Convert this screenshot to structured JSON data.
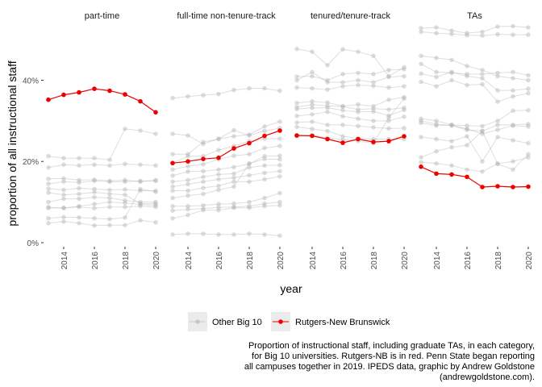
{
  "chart_data": {
    "type": "line",
    "facets": [
      "part-time",
      "full-time non-tenure-track",
      "tenured/tenure-track",
      "TAs"
    ],
    "xlabel": "year",
    "ylabel": "proportion of all instructional staff",
    "x_ticks": [
      "2014",
      "2016",
      "2018",
      "2020"
    ],
    "y_ticks": [
      "0%",
      "20%",
      "40%"
    ],
    "x": [
      2013,
      2014,
      2015,
      2016,
      2017,
      2018,
      2019,
      2020
    ],
    "xlim": [
      2013,
      2020
    ],
    "ylim": [
      0,
      0.53
    ],
    "legend": {
      "position": "bottom",
      "items": [
        {
          "label": "Other Big 10",
          "color": "#b5b5b5"
        },
        {
          "label": "Rutgers-New Brunswick",
          "color": "#ee0000"
        }
      ]
    },
    "caption": [
      "Proportion of instructional staff, including graduate TAs, in each category,",
      "for Big 10 universities. Rutgers-NB is in red. Penn State began reporting",
      "all campuses together in 2019. IPEDS data, graphic by Andrew Goldstone",
      "(andrewgoldstone.com)."
    ],
    "panels": [
      {
        "facet": "part-time",
        "rutgers": [
          0.352,
          0.364,
          0.37,
          0.379,
          0.374,
          0.365,
          0.348,
          0.321
        ],
        "others": [
          [
            0.213,
            0.208,
            0.208,
            0.208,
            0.204,
            0.28,
            0.276,
            0.268
          ],
          [
            0.185,
            0.192,
            0.19,
            0.192,
            0.19,
            0.194,
            0.192,
            0.19
          ],
          [
            0.157,
            0.158,
            0.154,
            0.155,
            0.152,
            0.154,
            0.15,
            0.154
          ],
          [
            0.145,
            0.15,
            0.148,
            0.152,
            0.15,
            0.15,
            0.152,
            0.152
          ],
          [
            0.133,
            0.13,
            0.134,
            0.132,
            0.13,
            0.131,
            0.128,
            0.128
          ],
          [
            0.123,
            0.118,
            0.12,
            0.124,
            0.12,
            0.118,
            0.096,
            0.096
          ],
          [
            0.1,
            0.108,
            0.108,
            0.112,
            0.11,
            0.104,
            0.1,
            0.1
          ],
          [
            0.088,
            0.085,
            0.09,
            0.095,
            0.1,
            0.098,
            0.094,
            0.092
          ],
          [
            0.085,
            0.086,
            0.088,
            0.085,
            0.088,
            0.088,
            0.09,
            0.088
          ],
          [
            0.06,
            0.063,
            0.062,
            0.06,
            0.058,
            0.062,
            0.132,
            0.125
          ],
          [
            0.048,
            0.052,
            0.048,
            0.042,
            0.043,
            0.043,
            0.055,
            0.05
          ]
        ]
      },
      {
        "facet": "full-time non-tenure-track",
        "rutgers": [
          0.196,
          0.2,
          0.206,
          0.209,
          0.232,
          0.245,
          0.263,
          0.276
        ],
        "others": [
          [
            0.356,
            0.36,
            0.363,
            0.366,
            0.376,
            0.38,
            0.38,
            0.374
          ],
          [
            0.268,
            0.264,
            0.243,
            0.256,
            0.277,
            0.264,
            0.275,
            0.282
          ],
          [
            0.218,
            0.218,
            0.248,
            0.255,
            0.262,
            0.266,
            0.286,
            0.298
          ],
          [
            0.196,
            0.213,
            0.213,
            0.228,
            0.238,
            0.25,
            0.256,
            0.256
          ],
          [
            0.18,
            0.188,
            0.193,
            0.205,
            0.214,
            0.218,
            0.233,
            0.238
          ],
          [
            0.165,
            0.175,
            0.176,
            0.18,
            0.186,
            0.194,
            0.213,
            0.214
          ],
          [
            0.15,
            0.154,
            0.162,
            0.168,
            0.17,
            0.185,
            0.19,
            0.191
          ],
          [
            0.138,
            0.144,
            0.15,
            0.156,
            0.16,
            0.166,
            0.172,
            0.176
          ],
          [
            0.128,
            0.128,
            0.135,
            0.14,
            0.15,
            0.15,
            0.156,
            0.163
          ],
          [
            0.11,
            0.116,
            0.12,
            0.13,
            0.138,
            0.195,
            0.206,
            0.205
          ],
          [
            0.09,
            0.09,
            0.092,
            0.095,
            0.096,
            0.1,
            0.11,
            0.122
          ],
          [
            0.079,
            0.082,
            0.084,
            0.087,
            0.088,
            0.09,
            0.096,
            0.1
          ],
          [
            0.06,
            0.068,
            0.08,
            0.08,
            0.086,
            0.086,
            0.09,
            0.092
          ],
          [
            0.02,
            0.022,
            0.022,
            0.02,
            0.02,
            0.022,
            0.02,
            0.017
          ]
        ]
      },
      {
        "facet": "tenured/tenure-track",
        "rutgers": [
          0.264,
          0.263,
          0.255,
          0.246,
          0.255,
          0.248,
          0.25,
          0.262
        ],
        "others": [
          [
            0.477,
            0.47,
            0.437,
            0.476,
            0.47,
            0.46,
            0.41,
            0.432
          ],
          [
            0.409,
            0.41,
            0.4,
            0.415,
            0.418,
            0.415,
            0.425,
            0.427
          ],
          [
            0.4,
            0.42,
            0.395,
            0.395,
            0.4,
            0.395,
            0.408,
            0.41
          ],
          [
            0.382,
            0.38,
            0.377,
            0.385,
            0.388,
            0.386,
            0.382,
            0.385
          ],
          [
            0.344,
            0.348,
            0.345,
            0.336,
            0.34,
            0.336,
            0.352,
            0.358
          ],
          [
            0.334,
            0.34,
            0.337,
            0.335,
            0.328,
            0.33,
            0.328,
            0.332
          ],
          [
            0.329,
            0.332,
            0.332,
            0.326,
            0.322,
            0.323,
            0.313,
            0.327
          ],
          [
            0.312,
            0.316,
            0.322,
            0.311,
            0.305,
            0.3,
            0.3,
            0.31
          ],
          [
            0.296,
            0.298,
            0.29,
            0.29,
            0.287,
            0.284,
            0.281,
            0.282
          ],
          [
            0.285,
            0.28,
            0.275,
            0.262,
            0.257,
            0.255,
            0.255,
            0.255
          ],
          [
            0.262,
            0.265,
            0.258,
            0.254,
            0.25,
            0.245,
            0.308,
            0.355
          ]
        ]
      },
      {
        "facet": "TAs",
        "rutgers": [
          0.187,
          0.17,
          0.168,
          0.162,
          0.137,
          0.139,
          0.137,
          0.138
        ],
        "others": [
          [
            0.528,
            0.53,
            0.522,
            0.516,
            0.519,
            0.532,
            0.533,
            0.53
          ],
          [
            0.519,
            0.516,
            0.514,
            0.511,
            0.51,
            0.513,
            0.512,
            0.512
          ],
          [
            0.46,
            0.455,
            0.45,
            0.435,
            0.425,
            0.41,
            0.405,
            0.4
          ],
          [
            0.44,
            0.42,
            0.418,
            0.415,
            0.415,
            0.418,
            0.42,
            0.412
          ],
          [
            0.416,
            0.408,
            0.42,
            0.41,
            0.405,
            0.375,
            0.375,
            0.379
          ],
          [
            0.396,
            0.385,
            0.4,
            0.388,
            0.39,
            0.347,
            0.36,
            0.368
          ],
          [
            0.305,
            0.3,
            0.29,
            0.288,
            0.287,
            0.3,
            0.325,
            0.326
          ],
          [
            0.3,
            0.292,
            0.288,
            0.278,
            0.275,
            0.29,
            0.29,
            0.292
          ],
          [
            0.295,
            0.288,
            0.29,
            0.28,
            0.268,
            0.278,
            0.288,
            0.286
          ],
          [
            0.26,
            0.255,
            0.25,
            0.262,
            0.2,
            0.26,
            0.252,
            0.245
          ],
          [
            0.21,
            0.225,
            0.235,
            0.24,
            0.275,
            0.194,
            0.18,
            0.218
          ],
          [
            0.198,
            0.195,
            0.19,
            0.18,
            0.175,
            0.195,
            0.2,
            0.21
          ]
        ]
      }
    ]
  }
}
